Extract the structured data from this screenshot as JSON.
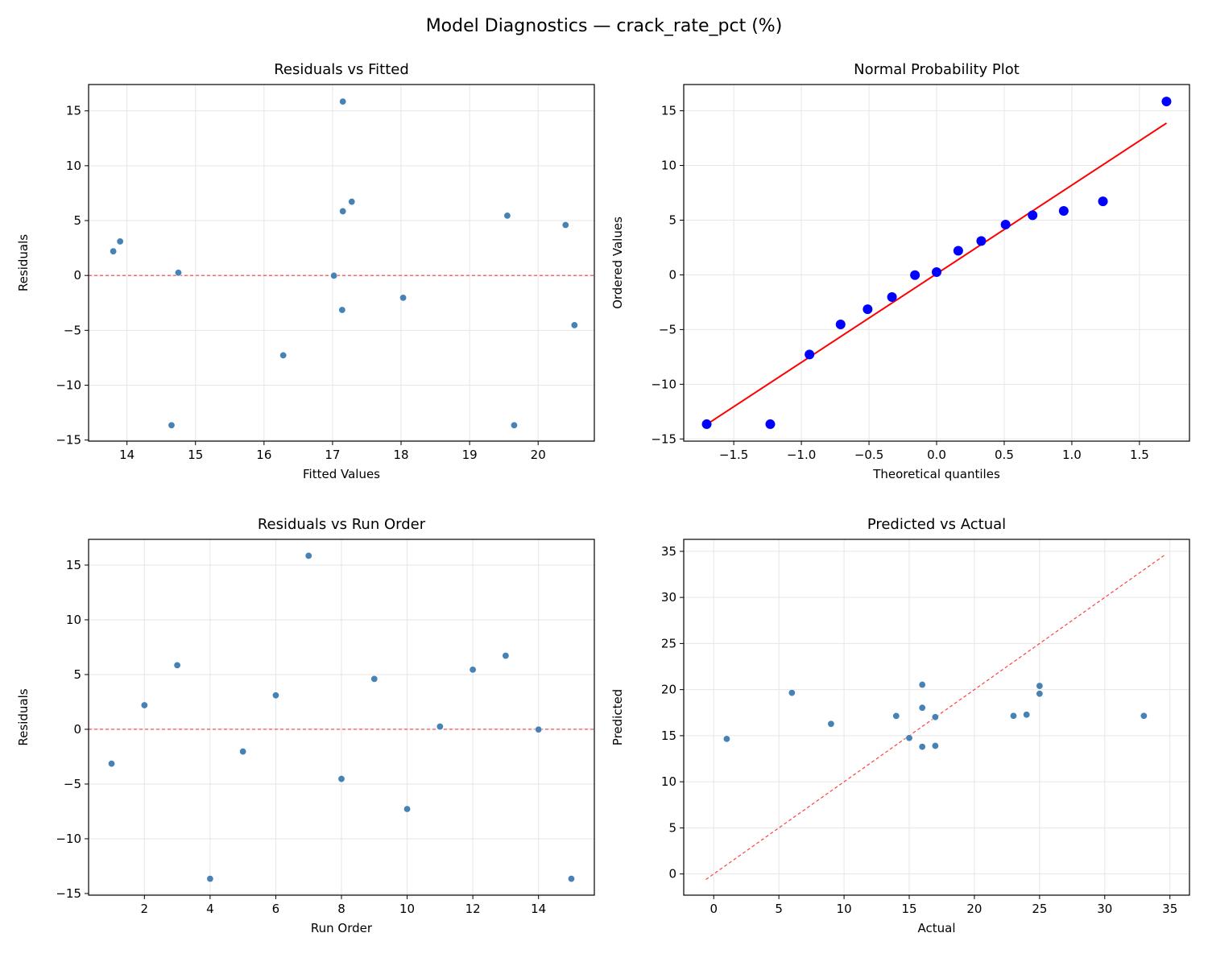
{
  "suptitle": "Model Diagnostics — crack_rate_pct (%)",
  "colors": {
    "points": "#4682b4",
    "qq_points": "#0000ff",
    "reference": "#ff0000",
    "grid": "#e6e6e6"
  },
  "chart_data": [
    {
      "type": "scatter",
      "title": "Residuals vs Fitted",
      "xlabel": "Fitted Values",
      "ylabel": "Residuals",
      "xlim": [
        13.44,
        20.82
      ],
      "ylim": [
        -15.1,
        17.4
      ],
      "xticks": [
        "14",
        "15",
        "16",
        "17",
        "18",
        "19",
        "20"
      ],
      "yticks": [
        "−15",
        "−10",
        "−5",
        "0",
        "5",
        "10",
        "15"
      ],
      "grid": true,
      "hline": 0,
      "x": [
        17.14,
        13.8,
        17.15,
        14.65,
        18.03,
        13.9,
        17.15,
        20.53,
        20.4,
        16.28,
        14.75,
        19.55,
        17.28,
        17.02,
        19.65
      ],
      "y": [
        -3.14,
        2.2,
        5.85,
        -13.65,
        -2.03,
        3.1,
        15.85,
        -4.53,
        4.6,
        -7.28,
        0.25,
        5.45,
        6.72,
        -0.02,
        -13.65
      ]
    },
    {
      "type": "scatter",
      "title": "Normal Probability Plot",
      "xlabel": "Theoretical quantiles",
      "ylabel": "Ordered Values",
      "xlim": [
        -1.87,
        1.87
      ],
      "ylim": [
        -15.2,
        17.4
      ],
      "xticks": [
        "−1.5",
        "−1.0",
        "−0.5",
        "0.0",
        "0.5",
        "1.0",
        "1.5"
      ],
      "yticks": [
        "−15",
        "−10",
        "−5",
        "0",
        "5",
        "10",
        "15"
      ],
      "grid": true,
      "x": [
        -1.7,
        -1.23,
        -0.94,
        -0.71,
        -0.51,
        -0.33,
        -0.16,
        0,
        0.16,
        0.33,
        0.51,
        0.71,
        0.94,
        1.23,
        1.7
      ],
      "y": [
        -13.65,
        -13.65,
        -7.28,
        -4.53,
        -3.14,
        -2.03,
        -0.02,
        0.25,
        2.2,
        3.1,
        4.6,
        5.45,
        5.85,
        6.72,
        15.85
      ],
      "fit_line": {
        "slope": 8.1,
        "intercept": 0.1,
        "x_range": [
          -1.7,
          1.7
        ]
      }
    },
    {
      "type": "scatter",
      "title": "Residuals vs Run Order",
      "xlabel": "Run Order",
      "ylabel": "Residuals",
      "xlim": [
        0.3,
        15.7
      ],
      "ylim": [
        -15.15,
        17.35
      ],
      "xticks": [
        "2",
        "4",
        "6",
        "8",
        "10",
        "12",
        "14"
      ],
      "yticks": [
        "−15",
        "−10",
        "−5",
        "0",
        "5",
        "10",
        "15"
      ],
      "grid": true,
      "hline": 0,
      "x": [
        1,
        2,
        3,
        4,
        5,
        6,
        7,
        8,
        9,
        10,
        11,
        12,
        13,
        14,
        15
      ],
      "y": [
        -3.14,
        2.2,
        5.85,
        -13.65,
        -2.03,
        3.1,
        15.85,
        -4.53,
        4.6,
        -7.28,
        0.25,
        5.45,
        6.72,
        -0.02,
        -13.65
      ]
    },
    {
      "type": "scatter",
      "title": "Predicted vs Actual",
      "xlabel": "Actual",
      "ylabel": "Predicted",
      "xlim": [
        -2.3,
        36.5
      ],
      "ylim": [
        -2.3,
        36.3
      ],
      "xticks": [
        "0",
        "5",
        "10",
        "15",
        "20",
        "25",
        "30",
        "35"
      ],
      "yticks": [
        "0",
        "5",
        "10",
        "15",
        "20",
        "25",
        "30",
        "35"
      ],
      "grid": true,
      "diagonal": [
        -0.6,
        34.6
      ],
      "x": [
        14,
        16,
        23,
        1,
        16,
        17,
        33,
        16,
        25,
        9,
        15,
        25,
        24,
        17,
        6
      ],
      "y": [
        17.14,
        13.8,
        17.15,
        14.65,
        18.03,
        13.9,
        17.15,
        20.53,
        20.4,
        16.28,
        14.75,
        19.55,
        17.28,
        17.02,
        19.65
      ]
    }
  ]
}
